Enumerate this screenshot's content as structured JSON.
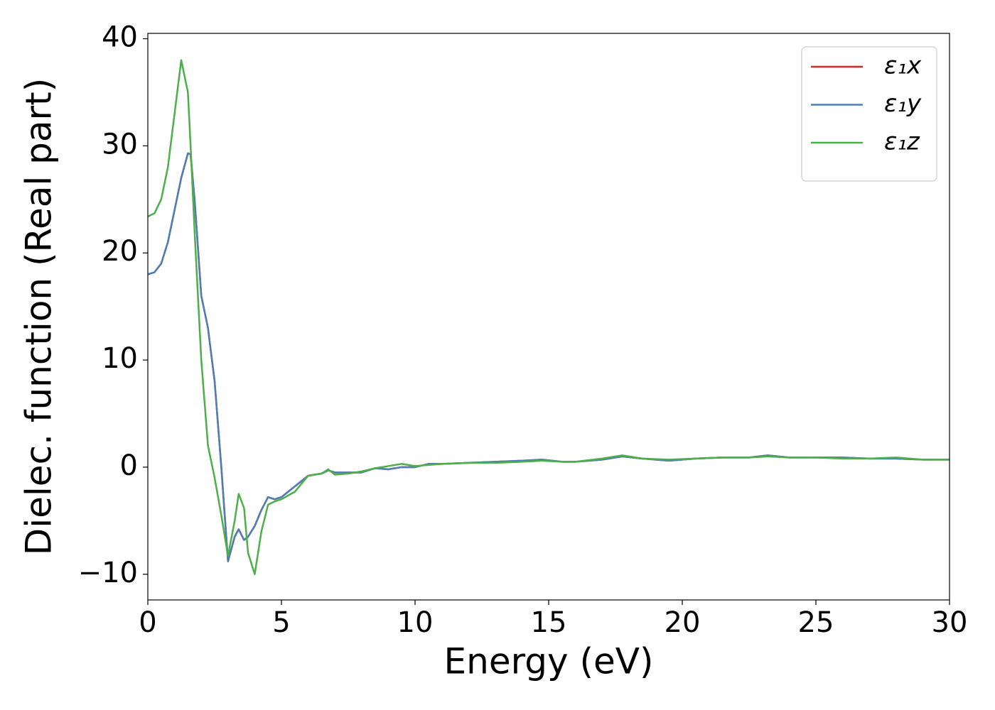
{
  "chart_data": {
    "type": "line",
    "xlabel": "Energy (eV)",
    "ylabel": "Dielec. function (Real part)",
    "x": [
      0,
      0.25,
      0.5,
      0.75,
      1.0,
      1.25,
      1.5,
      1.6,
      1.75,
      2.0,
      2.25,
      2.5,
      2.75,
      3.0,
      3.25,
      3.4,
      3.6,
      3.75,
      4.0,
      4.25,
      4.5,
      4.75,
      5.0,
      5.5,
      6.0,
      6.5,
      6.75,
      7.0,
      7.5,
      8.0,
      8.5,
      9,
      9.5,
      10,
      10.5,
      11,
      12,
      13,
      14,
      14.75,
      15.5,
      16,
      17,
      17.75,
      18.5,
      19.5,
      20.5,
      21.5,
      22.5,
      23.2,
      24,
      25,
      26,
      27,
      28,
      29,
      30
    ],
    "series": [
      {
        "name": "ε₁x",
        "color": "#d62728",
        "values": [
          18,
          18.2,
          19,
          21,
          24,
          27,
          29.3,
          29.2,
          25,
          16,
          13,
          8,
          0,
          -8.8,
          -6.5,
          -5.8,
          -6.8,
          -6.5,
          -5.5,
          -4,
          -2.8,
          -3,
          -2.8,
          -1.8,
          -0.8,
          -0.6,
          -0.3,
          -0.5,
          -0.5,
          -0.5,
          -0.1,
          -0.2,
          0,
          0,
          0.3,
          0.3,
          0.4,
          0.5,
          0.6,
          0.7,
          0.5,
          0.5,
          0.7,
          1.0,
          0.8,
          0.6,
          0.8,
          0.9,
          0.9,
          1.1,
          0.9,
          0.9,
          0.9,
          0.8,
          0.8,
          0.7,
          0.7
        ]
      },
      {
        "name": "ε₁y",
        "color": "#4a7fb8",
        "values": [
          18,
          18.2,
          19,
          21,
          24,
          27,
          29.3,
          29.2,
          25,
          16,
          13,
          8,
          0,
          -8.8,
          -6.5,
          -5.8,
          -6.8,
          -6.5,
          -5.5,
          -4,
          -2.8,
          -3,
          -2.8,
          -1.8,
          -0.8,
          -0.6,
          -0.3,
          -0.5,
          -0.5,
          -0.5,
          -0.1,
          -0.2,
          0,
          0,
          0.3,
          0.3,
          0.4,
          0.5,
          0.6,
          0.7,
          0.5,
          0.5,
          0.7,
          1.0,
          0.8,
          0.6,
          0.8,
          0.9,
          0.9,
          1.1,
          0.9,
          0.9,
          0.9,
          0.8,
          0.8,
          0.7,
          0.7
        ]
      },
      {
        "name": "ε₁z",
        "color": "#4daf4a",
        "values": [
          23.4,
          23.7,
          25,
          28,
          33,
          38,
          35,
          30,
          22,
          10,
          2,
          -1,
          -4.5,
          -8.3,
          -5,
          -2.5,
          -3.8,
          -8,
          -10,
          -6,
          -3.5,
          -3.2,
          -3,
          -2.3,
          -0.8,
          -0.6,
          -0.2,
          -0.7,
          -0.6,
          -0.4,
          -0.1,
          0.1,
          0.3,
          0.1,
          0.2,
          0.3,
          0.4,
          0.4,
          0.5,
          0.6,
          0.5,
          0.5,
          0.8,
          1.1,
          0.8,
          0.7,
          0.8,
          0.9,
          0.9,
          1.0,
          0.9,
          0.9,
          0.8,
          0.8,
          0.9,
          0.7,
          0.7
        ]
      }
    ],
    "xlim": [
      0,
      30
    ],
    "xticks": [
      0,
      5,
      10,
      15,
      20,
      25,
      30
    ],
    "ylim": [
      -12.4,
      40.5
    ],
    "yticks": [
      {
        "value": -10,
        "label": "−10"
      },
      0,
      10,
      20,
      30,
      40
    ],
    "legend": "upper right"
  }
}
